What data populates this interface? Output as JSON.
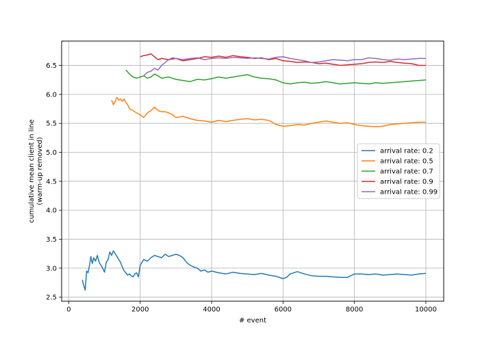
{
  "chart_data": {
    "type": "line",
    "title": "",
    "xlabel": "# event",
    "ylabel": [
      "cumulative mean client in line",
      "(warm-up removed)"
    ],
    "xlim": [
      -200,
      10500
    ],
    "ylim": [
      2.43,
      6.92
    ],
    "xticks": [
      0,
      2000,
      4000,
      6000,
      8000,
      10000
    ],
    "yticks": [
      2.5,
      3.0,
      3.5,
      4.0,
      4.5,
      5.0,
      5.5,
      6.0,
      6.5
    ],
    "grid": true,
    "legend_position": "center-right",
    "series": [
      {
        "name": "arrival rate: 0.2",
        "color": "#1f77b4",
        "x": [
          380,
          420,
          460,
          500,
          540,
          580,
          620,
          660,
          700,
          750,
          800,
          850,
          900,
          950,
          1000,
          1050,
          1100,
          1150,
          1200,
          1250,
          1300,
          1350,
          1400,
          1450,
          1500,
          1550,
          1600,
          1650,
          1700,
          1750,
          1800,
          1850,
          1900,
          1950,
          2000,
          2100,
          2200,
          2300,
          2400,
          2500,
          2600,
          2700,
          2800,
          2900,
          3000,
          3100,
          3200,
          3300,
          3400,
          3500,
          3600,
          3700,
          3800,
          3900,
          4000,
          4200,
          4400,
          4600,
          4800,
          5000,
          5200,
          5400,
          5600,
          5800,
          6000,
          6100,
          6200,
          6400,
          6600,
          6800,
          7000,
          7200,
          7400,
          7600,
          7800,
          8000,
          8200,
          8400,
          8600,
          8800,
          9000,
          9200,
          9400,
          9600,
          9800,
          10000
        ],
        "y": [
          2.8,
          2.7,
          2.62,
          2.95,
          2.92,
          3.05,
          3.2,
          3.08,
          3.18,
          3.12,
          3.22,
          3.1,
          3.05,
          3.0,
          2.93,
          3.1,
          3.15,
          3.28,
          3.22,
          3.3,
          3.25,
          3.2,
          3.15,
          3.1,
          3.02,
          2.95,
          2.92,
          2.88,
          2.9,
          2.87,
          2.85,
          2.9,
          2.92,
          2.85,
          3.05,
          3.15,
          3.12,
          3.18,
          3.22,
          3.2,
          3.18,
          3.24,
          3.2,
          3.22,
          3.24,
          3.22,
          3.18,
          3.1,
          3.05,
          3.02,
          3.0,
          2.95,
          2.97,
          2.93,
          2.95,
          2.92,
          2.9,
          2.93,
          2.91,
          2.9,
          2.89,
          2.91,
          2.88,
          2.86,
          2.82,
          2.84,
          2.9,
          2.94,
          2.9,
          2.87,
          2.86,
          2.86,
          2.85,
          2.84,
          2.84,
          2.9,
          2.9,
          2.89,
          2.9,
          2.88,
          2.89,
          2.9,
          2.89,
          2.88,
          2.9,
          2.91
        ]
      },
      {
        "name": "arrival rate: 0.5",
        "color": "#ff7f0e",
        "x": [
          1200,
          1250,
          1300,
          1350,
          1400,
          1450,
          1500,
          1550,
          1600,
          1650,
          1700,
          1800,
          1900,
          2000,
          2100,
          2200,
          2300,
          2400,
          2500,
          2600,
          2700,
          2800,
          2900,
          3000,
          3200,
          3400,
          3600,
          3800,
          4000,
          4200,
          4400,
          4600,
          4800,
          5000,
          5200,
          5400,
          5600,
          5700,
          5800,
          6000,
          6200,
          6400,
          6600,
          6800,
          7000,
          7200,
          7400,
          7600,
          7800,
          8000,
          8200,
          8400,
          8600,
          8800,
          9000,
          9200,
          9400,
          9600,
          9800,
          10000
        ],
        "y": [
          5.9,
          5.82,
          5.88,
          5.95,
          5.9,
          5.92,
          5.88,
          5.92,
          5.86,
          5.82,
          5.75,
          5.72,
          5.68,
          5.65,
          5.6,
          5.68,
          5.72,
          5.78,
          5.72,
          5.7,
          5.7,
          5.68,
          5.65,
          5.6,
          5.62,
          5.58,
          5.55,
          5.54,
          5.52,
          5.55,
          5.53,
          5.55,
          5.57,
          5.58,
          5.56,
          5.57,
          5.55,
          5.52,
          5.48,
          5.45,
          5.46,
          5.48,
          5.47,
          5.5,
          5.52,
          5.54,
          5.52,
          5.5,
          5.51,
          5.48,
          5.46,
          5.45,
          5.44,
          5.45,
          5.48,
          5.49,
          5.5,
          5.51,
          5.52,
          5.52
        ]
      },
      {
        "name": "arrival rate: 0.7",
        "color": "#2ca02c",
        "x": [
          1600,
          1700,
          1800,
          1900,
          2000,
          2100,
          2200,
          2300,
          2400,
          2500,
          2600,
          2800,
          3000,
          3200,
          3400,
          3600,
          3800,
          4000,
          4200,
          4400,
          4600,
          4800,
          5000,
          5200,
          5400,
          5600,
          5800,
          6000,
          6200,
          6400,
          6600,
          6800,
          7000,
          7200,
          7400,
          7600,
          7800,
          8000,
          8200,
          8400,
          8600,
          8800,
          9000,
          9200,
          9400,
          9600,
          9800,
          10000
        ],
        "y": [
          6.42,
          6.35,
          6.3,
          6.28,
          6.3,
          6.32,
          6.28,
          6.3,
          6.35,
          6.32,
          6.28,
          6.3,
          6.26,
          6.24,
          6.22,
          6.26,
          6.25,
          6.27,
          6.3,
          6.28,
          6.3,
          6.32,
          6.34,
          6.3,
          6.28,
          6.27,
          6.25,
          6.2,
          6.18,
          6.2,
          6.21,
          6.19,
          6.2,
          6.22,
          6.2,
          6.18,
          6.19,
          6.2,
          6.19,
          6.18,
          6.2,
          6.19,
          6.2,
          6.21,
          6.22,
          6.23,
          6.24,
          6.25
        ]
      },
      {
        "name": "arrival rate: 0.9",
        "color": "#d62728",
        "x": [
          2000,
          2100,
          2200,
          2300,
          2400,
          2500,
          2600,
          2800,
          3000,
          3200,
          3400,
          3600,
          3800,
          4000,
          4200,
          4400,
          4600,
          4800,
          5000,
          5200,
          5400,
          5600,
          5800,
          6000,
          6200,
          6400,
          6600,
          6800,
          7000,
          7200,
          7400,
          7600,
          7800,
          8000,
          8200,
          8400,
          8600,
          8800,
          9000,
          9200,
          9400,
          9600,
          9800,
          10000
        ],
        "y": [
          6.65,
          6.67,
          6.68,
          6.7,
          6.65,
          6.6,
          6.62,
          6.6,
          6.62,
          6.58,
          6.6,
          6.62,
          6.65,
          6.64,
          6.66,
          6.64,
          6.67,
          6.65,
          6.64,
          6.62,
          6.63,
          6.6,
          6.62,
          6.58,
          6.57,
          6.55,
          6.56,
          6.55,
          6.53,
          6.54,
          6.52,
          6.5,
          6.51,
          6.52,
          6.53,
          6.55,
          6.56,
          6.55,
          6.57,
          6.55,
          6.54,
          6.53,
          6.5,
          6.5
        ]
      },
      {
        "name": "arrival rate: 0.99",
        "color": "#9467bd",
        "x": [
          2100,
          2200,
          2300,
          2400,
          2500,
          2600,
          2700,
          2800,
          2900,
          3000,
          3200,
          3400,
          3600,
          3800,
          4000,
          4200,
          4400,
          4600,
          4800,
          5000,
          5200,
          5400,
          5600,
          5800,
          6000,
          6200,
          6400,
          6600,
          6800,
          7000,
          7200,
          7400,
          7600,
          7800,
          8000,
          8200,
          8400,
          8600,
          8800,
          9000,
          9200,
          9400,
          9600,
          9800,
          10000
        ],
        "y": [
          6.32,
          6.38,
          6.4,
          6.45,
          6.42,
          6.5,
          6.55,
          6.6,
          6.63,
          6.62,
          6.6,
          6.62,
          6.63,
          6.6,
          6.62,
          6.63,
          6.62,
          6.64,
          6.63,
          6.62,
          6.63,
          6.62,
          6.61,
          6.64,
          6.65,
          6.62,
          6.6,
          6.58,
          6.55,
          6.56,
          6.58,
          6.6,
          6.59,
          6.58,
          6.6,
          6.6,
          6.63,
          6.62,
          6.6,
          6.59,
          6.61,
          6.6,
          6.61,
          6.62,
          6.62
        ]
      }
    ]
  }
}
